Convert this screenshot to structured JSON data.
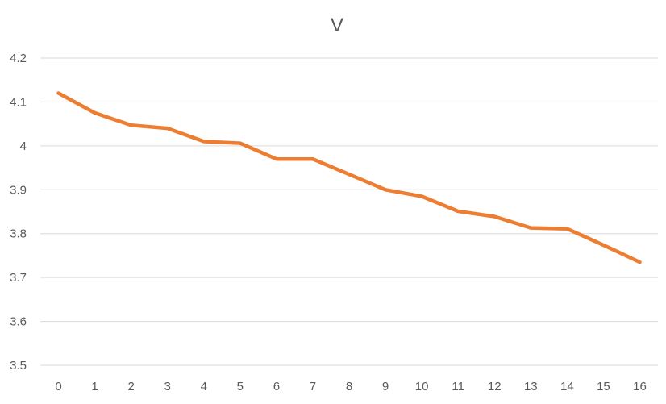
{
  "chart_data": {
    "type": "line",
    "title": "V",
    "xlabel": "",
    "ylabel": "",
    "categories": [
      "0",
      "1",
      "2",
      "3",
      "4",
      "5",
      "6",
      "7",
      "8",
      "9",
      "10",
      "11",
      "12",
      "13",
      "14",
      "15",
      "16"
    ],
    "series": [
      {
        "values": [
          4.12,
          4.075,
          4.047,
          4.04,
          4.01,
          4.006,
          3.97,
          3.97,
          3.935,
          3.9,
          3.885,
          3.851,
          3.839,
          3.813,
          3.811,
          3.774,
          3.735
        ],
        "color": "#ED7D31"
      }
    ],
    "ylim": [
      3.5,
      4.2
    ],
    "yticks": [
      "3.5",
      "3.6",
      "3.7",
      "3.8",
      "3.9",
      "4",
      "4.1",
      "4.2"
    ],
    "grid": true,
    "legend": "none"
  }
}
